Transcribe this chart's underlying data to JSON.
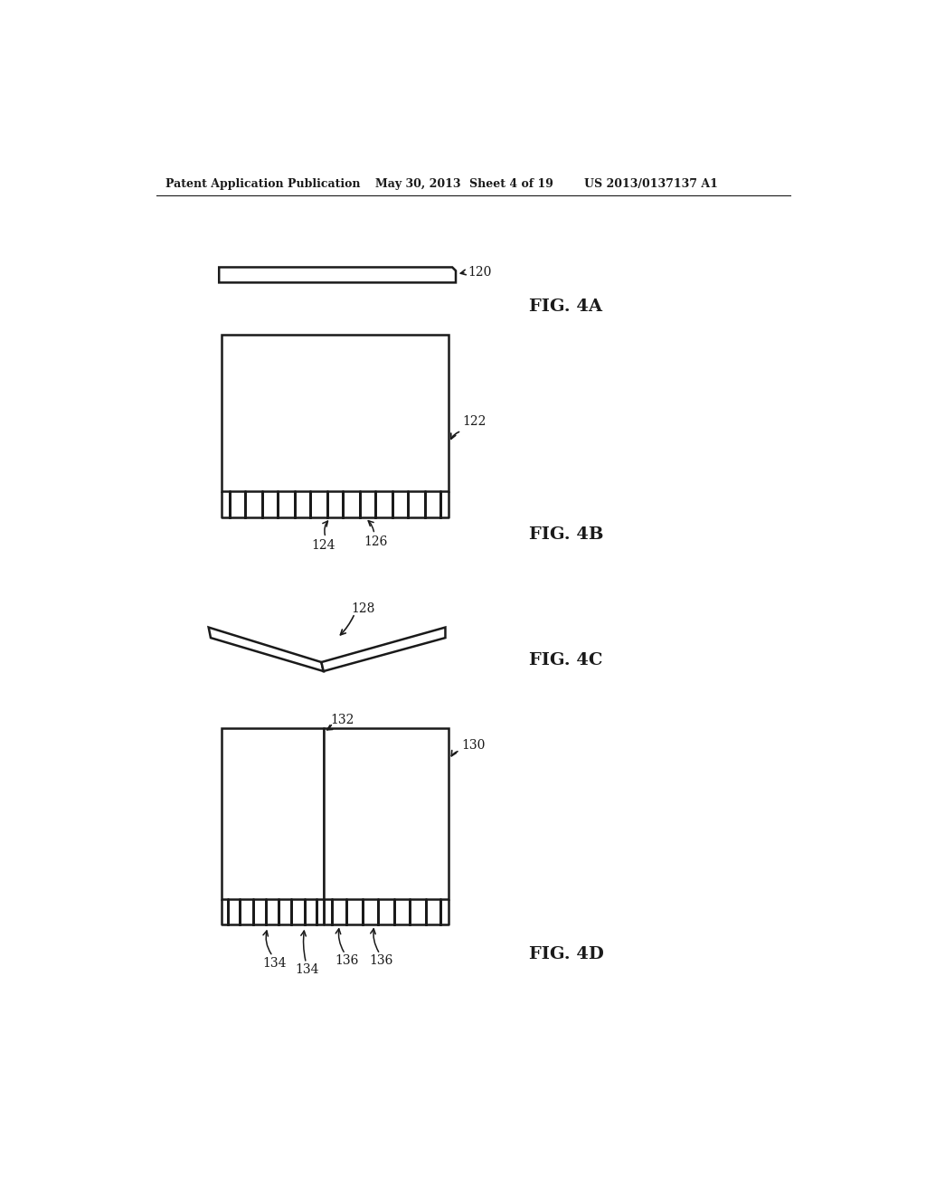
{
  "bg_color": "#ffffff",
  "line_color": "#1a1a1a",
  "header_text": "Patent Application Publication",
  "header_date": "May 30, 2013",
  "header_sheet": "Sheet 4 of 19",
  "header_patent": "US 2013/0137137 A1",
  "fig4a_label": "FIG. 4A",
  "fig4b_label": "FIG. 4B",
  "fig4c_label": "FIG. 4C",
  "fig4d_label": "FIG. 4D",
  "label_120": "120",
  "label_122": "122",
  "label_124": "124",
  "label_126": "126",
  "label_128": "128",
  "label_130": "130",
  "label_132": "132",
  "label_134a": "134",
  "label_134b": "134",
  "label_136a": "136",
  "label_136b": "136"
}
